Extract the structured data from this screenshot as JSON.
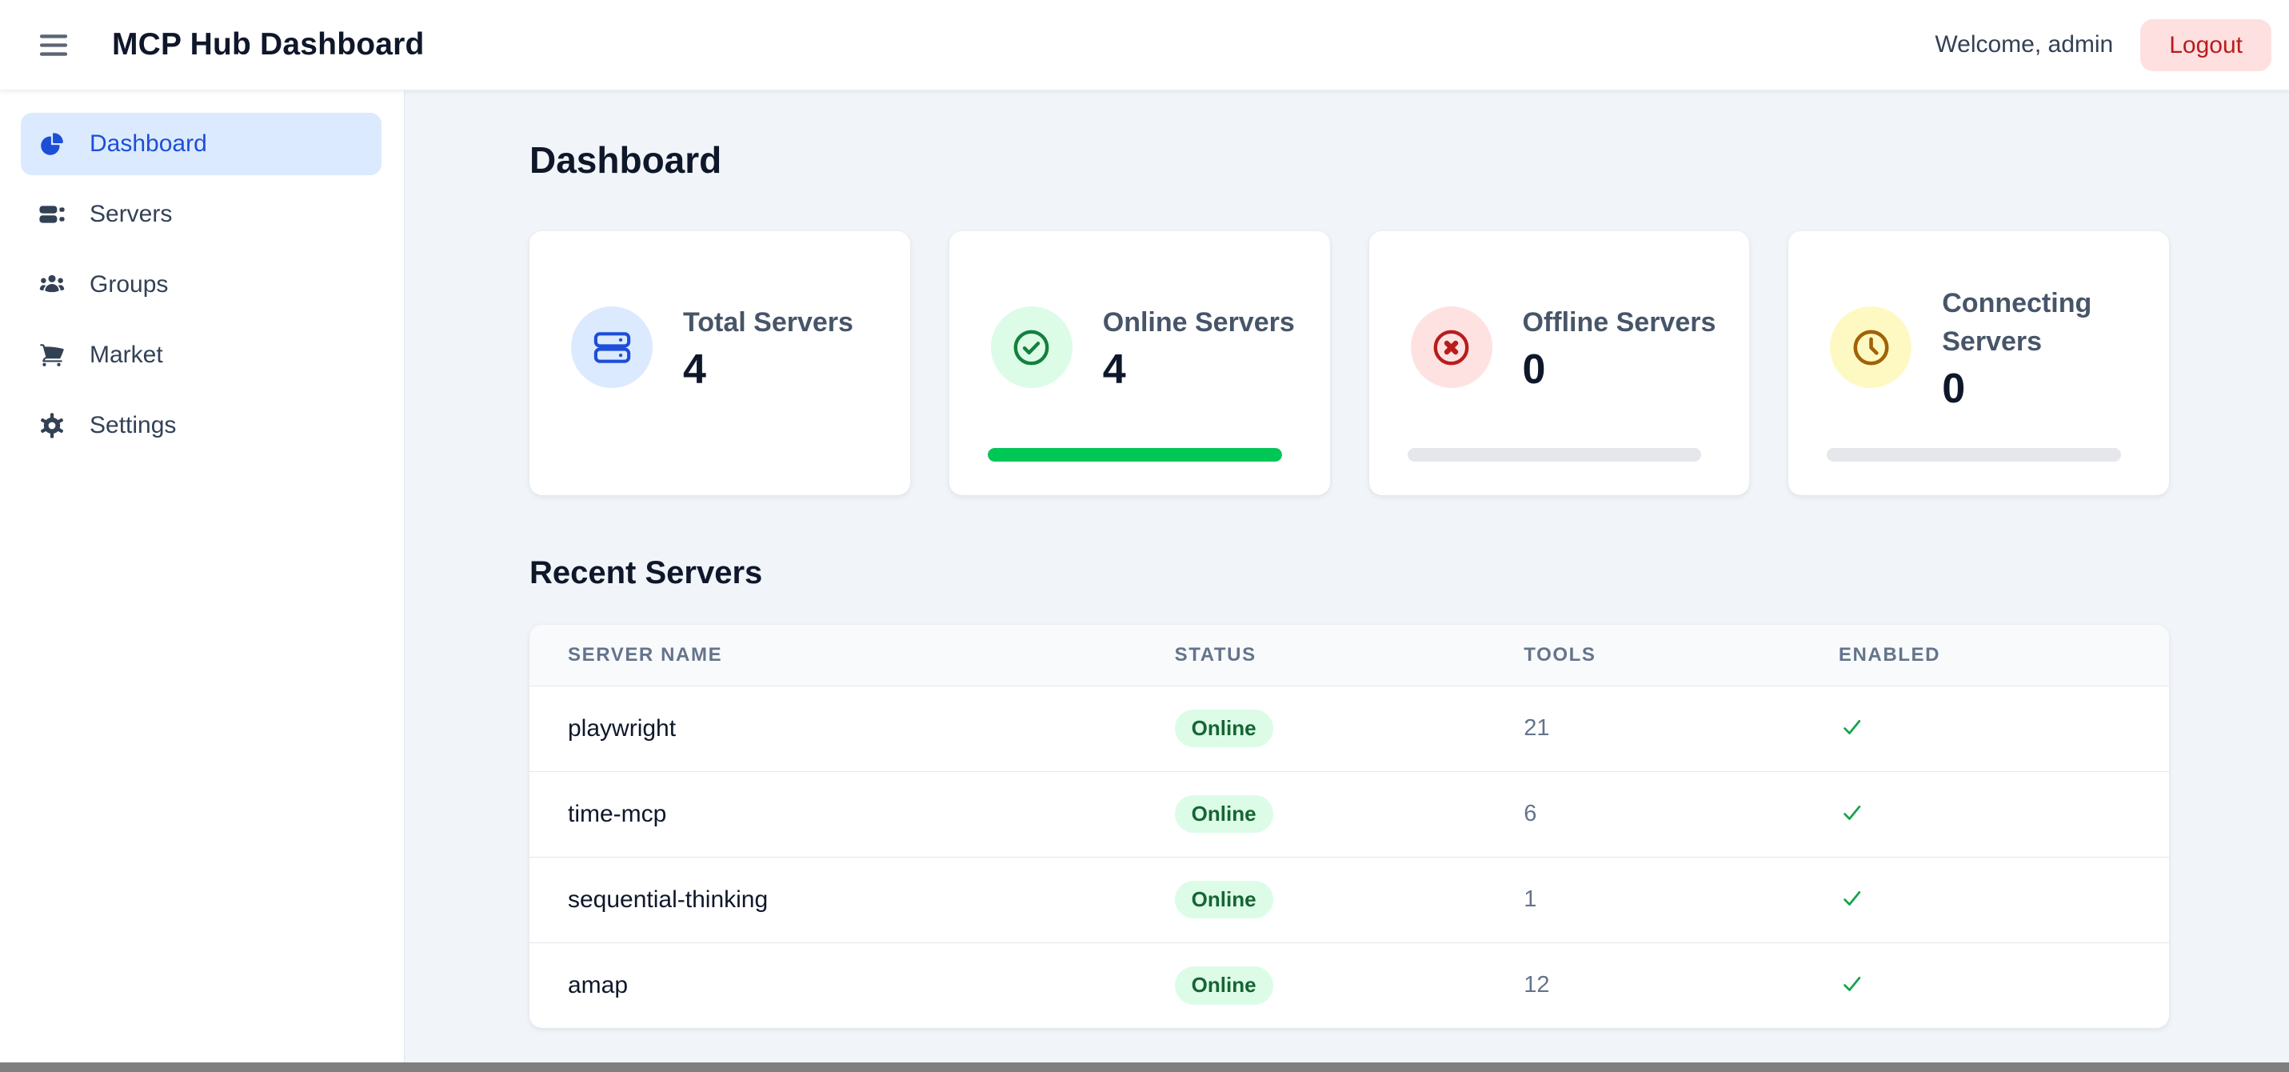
{
  "header": {
    "title": "MCP Hub Dashboard",
    "welcome": "Welcome, admin",
    "logout_label": "Logout"
  },
  "sidebar": {
    "items": [
      {
        "label": "Dashboard",
        "icon": "pie-chart-icon",
        "active": true
      },
      {
        "label": "Servers",
        "icon": "server-stack-icon",
        "active": false
      },
      {
        "label": "Groups",
        "icon": "user-group-icon",
        "active": false
      },
      {
        "label": "Market",
        "icon": "shopping-cart-icon",
        "active": false
      },
      {
        "label": "Settings",
        "icon": "gear-icon",
        "active": false
      }
    ]
  },
  "main": {
    "page_title": "Dashboard",
    "stat_cards": [
      {
        "label": "Total Servers",
        "value": "4",
        "icon": "server-icon",
        "icon_bg": "#dbeafe",
        "accent": "#1d4ed8",
        "progress": null
      },
      {
        "label": "Online Servers",
        "value": "4",
        "icon": "check-circle-icon",
        "icon_bg": "#dcfce7",
        "accent": "#15803d",
        "progress": 100,
        "progress_color": "#00c755"
      },
      {
        "label": "Offline Servers",
        "value": "0",
        "icon": "x-circle-icon",
        "icon_bg": "#fee2e2",
        "accent": "#b91c1c",
        "progress": 0
      },
      {
        "label": "Connecting Servers",
        "value": "0",
        "icon": "clock-icon",
        "icon_bg": "#fef9c3",
        "accent": "#a16207",
        "progress": 0
      }
    ],
    "recent": {
      "heading": "Recent Servers",
      "columns": [
        "SERVER NAME",
        "STATUS",
        "TOOLS",
        "ENABLED"
      ],
      "rows": [
        {
          "name": "playwright",
          "status": "Online",
          "tools": "21",
          "enabled": true
        },
        {
          "name": "time-mcp",
          "status": "Online",
          "tools": "6",
          "enabled": true
        },
        {
          "name": "sequential-thinking",
          "status": "Online",
          "tools": "1",
          "enabled": true
        },
        {
          "name": "amap",
          "status": "Online",
          "tools": "12",
          "enabled": true
        }
      ]
    }
  },
  "colors": {
    "main_background": "#f1f5f9",
    "surface": "#ffffff",
    "active_nav_bg": "#dbeafe",
    "active_nav_text": "#1d4ed8",
    "online_badge_bg": "#dcfce7",
    "online_badge_text": "#166534",
    "progress_green": "#00c755",
    "progress_track": "#e5e7eb",
    "logout_bg": "#fee0e0",
    "logout_text": "#b91c1c",
    "check_green": "#16a34a"
  }
}
